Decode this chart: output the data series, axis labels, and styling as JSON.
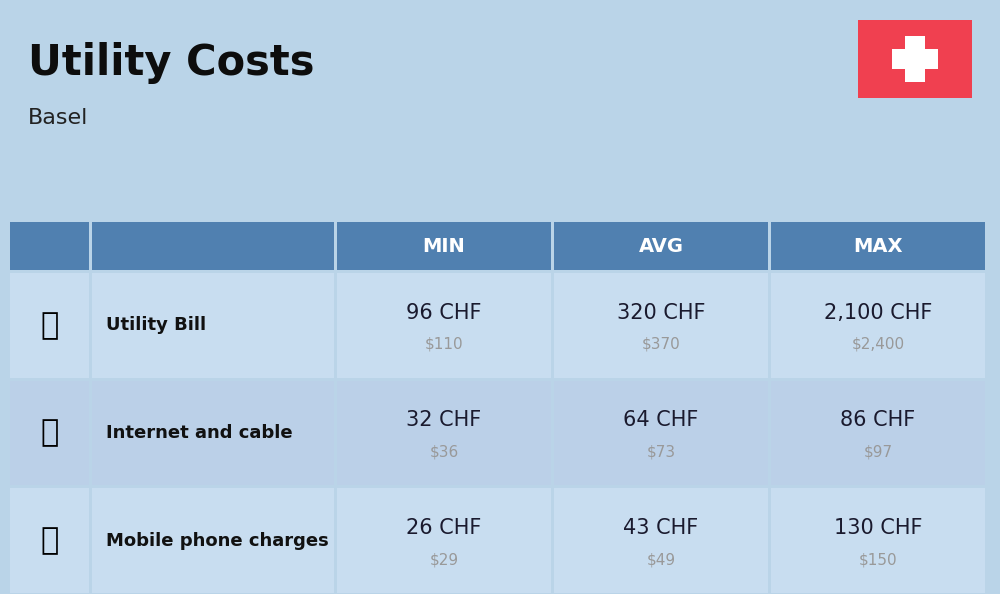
{
  "title": "Utility Costs",
  "subtitle": "Basel",
  "background_color": "#bad4e8",
  "header_bg_color": "#5080b0",
  "header_text_color": "#ffffff",
  "row_bg_color_odd": "#c8ddf0",
  "row_bg_color_even": "#bbd0e8",
  "cell_text_color": "#1a1a2e",
  "usd_text_color": "#999999",
  "label_text_color": "#111111",
  "flag_color": "#f04050",
  "flag_cross_color": "#ffffff",
  "headers": [
    "MIN",
    "AVG",
    "MAX"
  ],
  "rows": [
    {
      "label": "Utility Bill",
      "min_chf": "96 CHF",
      "min_usd": "$110",
      "avg_chf": "320 CHF",
      "avg_usd": "$370",
      "max_chf": "2,100 CHF",
      "max_usd": "$2,400"
    },
    {
      "label": "Internet and cable",
      "min_chf": "32 CHF",
      "min_usd": "$36",
      "avg_chf": "64 CHF",
      "avg_usd": "$73",
      "max_chf": "86 CHF",
      "max_usd": "$97"
    },
    {
      "label": "Mobile phone charges",
      "min_chf": "26 CHF",
      "min_usd": "$29",
      "avg_chf": "43 CHF",
      "avg_usd": "$49",
      "max_chf": "130 CHF",
      "max_usd": "$150"
    }
  ],
  "figsize": [
    10.0,
    5.94
  ],
  "dpi": 100
}
